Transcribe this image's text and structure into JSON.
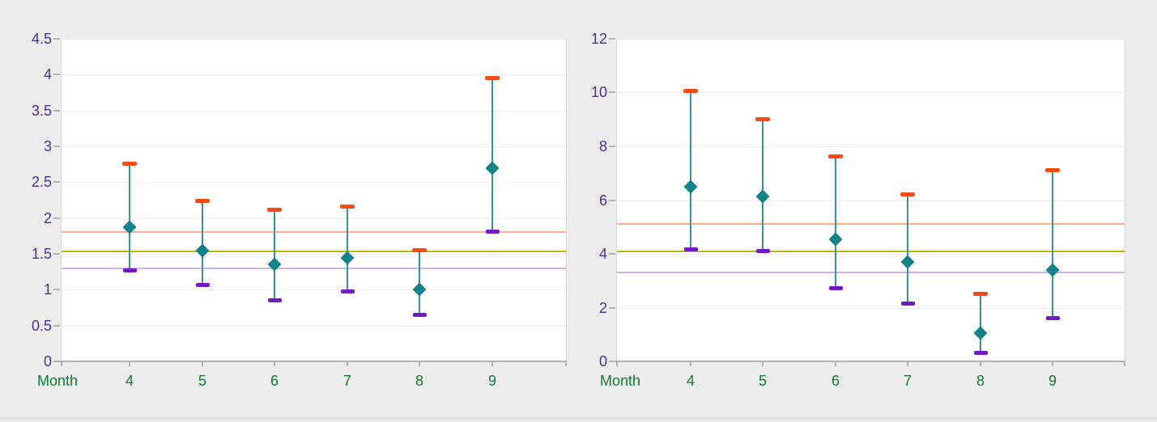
{
  "page": {
    "background": "#ececec",
    "divider_color": "#d5d5d5"
  },
  "colors": {
    "plot_background": "#ffffff",
    "plot_border": "#d9d9d9",
    "gridline": "#ededed",
    "axis_line": "#b1b1b1",
    "y_tick_label": "#473090",
    "x_tick_label": "#0e7b2f",
    "mean_marker": "#148289",
    "whisker": "#38939a",
    "high_cap": "#fb4a14",
    "low_cap": "#7119c2"
  },
  "chart_data": [
    {
      "type": "scatter",
      "subtype": "mean-with-min-max-whiskers",
      "title": "",
      "xlabel": "Month",
      "ylabel": "",
      "categories": [
        4,
        5,
        6,
        7,
        8,
        9
      ],
      "series": [
        {
          "name": "mean",
          "marker": "diamond",
          "values": [
            1.87,
            1.54,
            1.35,
            1.44,
            1.0,
            2.7
          ]
        },
        {
          "name": "max",
          "marker": "cap",
          "values": [
            2.75,
            2.23,
            2.11,
            2.15,
            1.55,
            3.95
          ]
        },
        {
          "name": "min",
          "marker": "cap",
          "values": [
            1.26,
            1.06,
            0.85,
            0.97,
            0.64,
            1.8
          ]
        }
      ],
      "reference_lines": [
        {
          "value": 1.8,
          "color": "#ffaa92"
        },
        {
          "value": 1.53,
          "color": "#b2be00"
        },
        {
          "value": 1.3,
          "color": "#cbb4e8"
        }
      ],
      "ylim": [
        0,
        4.5
      ],
      "yticks": [
        0,
        0.5,
        1,
        1.5,
        2,
        2.5,
        3,
        3.5,
        4,
        4.5
      ],
      "grid": true,
      "legend": false
    },
    {
      "type": "scatter",
      "subtype": "mean-with-min-max-whiskers",
      "title": "",
      "xlabel": "Month",
      "ylabel": "",
      "categories": [
        4,
        5,
        6,
        7,
        8,
        9
      ],
      "series": [
        {
          "name": "mean",
          "marker": "diamond",
          "values": [
            6.5,
            6.15,
            4.55,
            3.7,
            1.05,
            3.4
          ]
        },
        {
          "name": "max",
          "marker": "cap",
          "values": [
            10.05,
            9.0,
            7.6,
            6.2,
            2.5,
            7.1
          ]
        },
        {
          "name": "min",
          "marker": "cap",
          "values": [
            4.15,
            4.1,
            2.7,
            2.15,
            0.3,
            1.6
          ]
        }
      ],
      "reference_lines": [
        {
          "value": 5.1,
          "color": "#ffaa92"
        },
        {
          "value": 4.1,
          "color": "#b2be00"
        },
        {
          "value": 3.3,
          "color": "#cbb4e8"
        }
      ],
      "ylim": [
        0,
        12
      ],
      "yticks": [
        0,
        2,
        4,
        6,
        8,
        10,
        12
      ],
      "grid": true,
      "legend": false
    }
  ]
}
